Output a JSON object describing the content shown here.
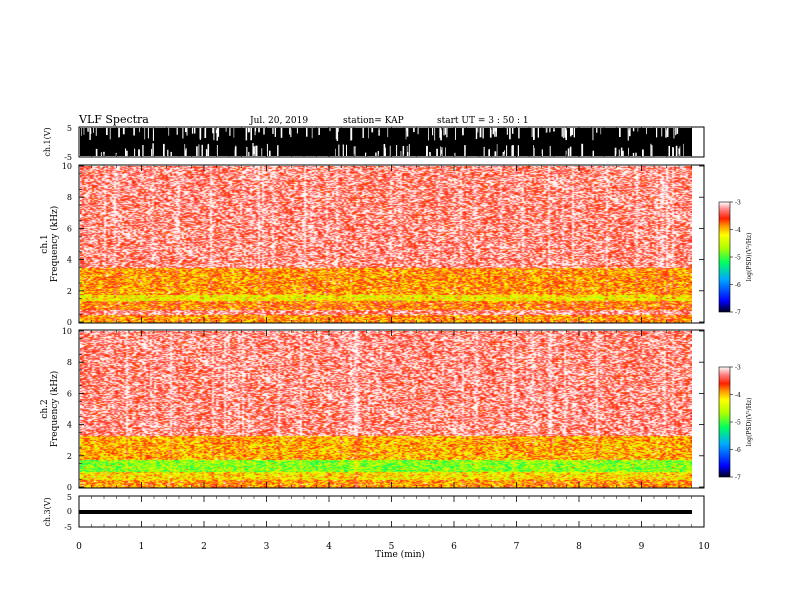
{
  "header": {
    "title": "VLF Spectra",
    "date": "Jul. 20, 2019",
    "station": "station= KAP",
    "start": "start UT =  3 : 50 : 1"
  },
  "chart_data": [
    {
      "type": "line",
      "panel": "ch1-waveform",
      "ylabel": "ch.1(V)",
      "ylim": [
        -5,
        5
      ],
      "yticks": [
        "5",
        "-5"
      ],
      "xlim": [
        0,
        10
      ],
      "xlabel": "",
      "color": "#000000"
    },
    {
      "type": "heatmap",
      "panel": "ch1-spectrogram",
      "ylabel": "ch.1\nFrequency (kHz)",
      "ylim": [
        0,
        10
      ],
      "yticks": [
        "0",
        "2",
        "4",
        "6",
        "8",
        "10"
      ],
      "xlim": [
        0,
        9.8
      ],
      "colorbar": {
        "label": "log(PSD)(V²/Hz)",
        "range": [
          -7,
          -3
        ],
        "ticks": [
          "-3",
          "-4",
          "-5",
          "-6",
          "-7"
        ]
      },
      "bands": [
        {
          "f_low": 0,
          "f_high": 0.5,
          "level": -3.9
        },
        {
          "f_low": 0.5,
          "f_high": 0.8,
          "level": -3.3
        },
        {
          "f_low": 0.8,
          "f_high": 1.4,
          "level": -3.8
        },
        {
          "f_low": 1.4,
          "f_high": 1.8,
          "level": -4.3
        },
        {
          "f_low": 1.8,
          "f_high": 3.5,
          "level": -3.9
        },
        {
          "f_low": 3.5,
          "f_high": 10,
          "level": -3.3
        }
      ]
    },
    {
      "type": "heatmap",
      "panel": "ch2-spectrogram",
      "ylabel": "ch.2\nFrequency (kHz)",
      "ylim": [
        0,
        10
      ],
      "yticks": [
        "0",
        "2",
        "4",
        "6",
        "8",
        "10"
      ],
      "xlim": [
        0,
        9.8
      ],
      "colorbar": {
        "label": "log(PSD)(V²/Hz)",
        "range": [
          -7,
          -3
        ],
        "ticks": [
          "-3",
          "-4",
          "-5",
          "-6",
          "-7"
        ]
      },
      "bands": [
        {
          "f_low": 0,
          "f_high": 0.5,
          "level": -3.9
        },
        {
          "f_low": 0.5,
          "f_high": 1.0,
          "level": -4.2
        },
        {
          "f_low": 1.0,
          "f_high": 1.8,
          "level": -4.8
        },
        {
          "f_low": 1.8,
          "f_high": 3.3,
          "level": -4.0
        },
        {
          "f_low": 3.3,
          "f_high": 10,
          "level": -3.3
        }
      ]
    },
    {
      "type": "line",
      "panel": "ch3-waveform",
      "ylabel": "ch.3(V)",
      "ylim": [
        -5,
        5
      ],
      "yticks": [
        "5",
        "0",
        "-5"
      ],
      "xlim": [
        0,
        10
      ],
      "xlabel": "Time (min)",
      "xticks": [
        "0",
        "1",
        "2",
        "3",
        "4",
        "5",
        "6",
        "7",
        "8",
        "9",
        "10"
      ],
      "values_constant": -1,
      "color": "#000000"
    }
  ]
}
